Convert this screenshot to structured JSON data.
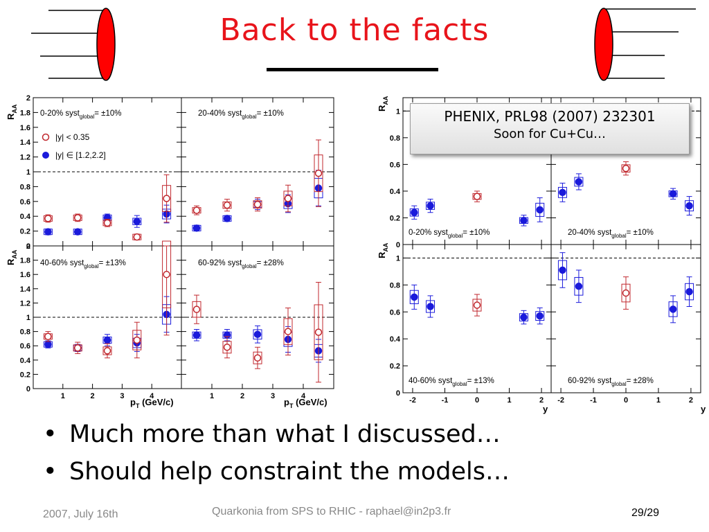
{
  "slide": {
    "title": "Back to the facts",
    "bullets": [
      "Much more than what I discussed…",
      "Should help constraint the models…"
    ],
    "bullet_glyph": "•",
    "footer_left": "2007, July 16th",
    "footer_center": "Quarkonia from SPS to RHIC - raphael@in2p3.fr",
    "footer_right": "29/29",
    "callout_line1": "PHENIX, PRL98 (2007) 232301",
    "callout_line2": "Soon for Cu+Cu…",
    "colors": {
      "title": "#e8141b",
      "red_series": "#c0272d",
      "blue_series": "#1a1adb",
      "ellipse": "#ff0000"
    },
    "icons": [
      "beam-ellipse-icon"
    ]
  },
  "chart_data": [
    {
      "type": "scatter",
      "ylabel": "R_AA",
      "xlabel": "p_T (GeV/c)",
      "xlim": [
        0,
        5
      ],
      "ylim": [
        0,
        2
      ],
      "y_ticks": [
        0,
        0.2,
        0.4,
        0.6,
        0.8,
        1,
        1.2,
        1.4,
        1.6,
        1.8,
        2
      ],
      "x_ticks": [
        1,
        2,
        3,
        4
      ],
      "reference_line": 1,
      "legend": [
        "|y| < 0.35",
        "|y| ∈ [1.2,2.2]"
      ],
      "panels": [
        {
          "label_prefix": "0-20% syst",
          "label_sub": "global",
          "label_suffix": "= ±10%",
          "red": [
            [
              0.5,
              0.37,
              0.05
            ],
            [
              1.5,
              0.38,
              0.05
            ],
            [
              2.5,
              0.31,
              0.05
            ],
            [
              3.5,
              0.12,
              0.04
            ],
            [
              4.5,
              0.64,
              0.32
            ]
          ],
          "blue": [
            [
              0.5,
              0.19,
              0.04
            ],
            [
              1.5,
              0.19,
              0.03
            ],
            [
              2.5,
              0.38,
              0.05
            ],
            [
              3.5,
              0.33,
              0.08
            ],
            [
              4.5,
              0.43,
              0.12
            ]
          ]
        },
        {
          "label_prefix": "20-40% syst",
          "label_sub": "global",
          "label_suffix": "= ±10%",
          "red": [
            [
              0.5,
              0.48,
              0.06
            ],
            [
              1.5,
              0.55,
              0.08
            ],
            [
              2.5,
              0.56,
              0.09
            ],
            [
              3.5,
              0.64,
              0.18
            ],
            [
              4.5,
              0.98,
              0.45
            ]
          ],
          "blue": [
            [
              0.5,
              0.24,
              0.04
            ],
            [
              1.5,
              0.37,
              0.04
            ],
            [
              2.5,
              0.56,
              0.07
            ],
            [
              3.5,
              0.57,
              0.12
            ],
            [
              4.5,
              0.78,
              0.24
            ]
          ]
        },
        {
          "label_prefix": "40-60% syst",
          "label_sub": "global",
          "label_suffix": "= ±13%",
          "red": [
            [
              0.5,
              0.73,
              0.07
            ],
            [
              1.5,
              0.57,
              0.08
            ],
            [
              2.5,
              0.53,
              0.1
            ],
            [
              3.5,
              0.68,
              0.25
            ],
            [
              4.5,
              1.6,
              0.85
            ]
          ],
          "blue": [
            [
              0.5,
              0.62,
              0.05
            ],
            [
              1.5,
              0.57,
              0.05
            ],
            [
              2.5,
              0.68,
              0.08
            ],
            [
              3.5,
              0.64,
              0.12
            ],
            [
              4.5,
              1.04,
              0.25
            ]
          ]
        },
        {
          "label_prefix": "60-92% syst",
          "label_sub": "global",
          "label_suffix": "= ±28%",
          "red": [
            [
              0.5,
              1.11,
              0.2
            ],
            [
              1.5,
              0.58,
              0.15
            ],
            [
              2.5,
              0.43,
              0.15
            ],
            [
              3.5,
              0.8,
              0.33
            ],
            [
              4.5,
              0.79,
              0.7
            ]
          ],
          "blue": [
            [
              0.5,
              0.75,
              0.08
            ],
            [
              1.5,
              0.75,
              0.08
            ],
            [
              2.5,
              0.76,
              0.12
            ],
            [
              3.5,
              0.69,
              0.18
            ],
            [
              4.5,
              0.53,
              0.16
            ]
          ]
        }
      ]
    },
    {
      "type": "scatter",
      "ylabel": "R_AA",
      "xlabel": "y",
      "xlim": [
        -2.3,
        2.3
      ],
      "ylim": [
        0,
        1.1
      ],
      "y_ticks": [
        0,
        0.2,
        0.4,
        0.6,
        0.8,
        1
      ],
      "x_ticks": [
        -2,
        -1,
        0,
        1,
        2
      ],
      "reference_line": 1,
      "panels": [
        {
          "label_prefix": "0-20%  syst",
          "label_sub": "global",
          "label_suffix": "= ±10%",
          "red": [
            [
              0,
              0.36,
              0.04
            ]
          ],
          "blue": [
            [
              -1.95,
              0.24,
              0.05
            ],
            [
              -1.45,
              0.29,
              0.05
            ],
            [
              1.45,
              0.18,
              0.04
            ],
            [
              1.95,
              0.26,
              0.09
            ]
          ]
        },
        {
          "label_prefix": "20-40%  syst",
          "label_sub": "global",
          "label_suffix": "= ±10%",
          "red": [
            [
              0,
              0.57,
              0.05
            ]
          ],
          "blue": [
            [
              -1.95,
              0.39,
              0.07
            ],
            [
              -1.45,
              0.47,
              0.06
            ],
            [
              1.45,
              0.38,
              0.04
            ],
            [
              1.95,
              0.29,
              0.07
            ]
          ]
        },
        {
          "label_prefix": "40-60%  syst",
          "label_sub": "global",
          "label_suffix": "= ±13%",
          "red": [
            [
              0,
              0.65,
              0.08
            ]
          ],
          "blue": [
            [
              -1.95,
              0.71,
              0.09
            ],
            [
              -1.45,
              0.64,
              0.08
            ],
            [
              1.45,
              0.56,
              0.05
            ],
            [
              1.95,
              0.57,
              0.06
            ]
          ]
        },
        {
          "label_prefix": "60-92%  syst",
          "label_sub": "global",
          "label_suffix": "= ±28%",
          "red": [
            [
              0,
              0.74,
              0.12
            ]
          ],
          "blue": [
            [
              -1.95,
              0.91,
              0.13
            ],
            [
              -1.45,
              0.79,
              0.12
            ],
            [
              1.45,
              0.62,
              0.1
            ],
            [
              1.95,
              0.75,
              0.11
            ]
          ]
        }
      ]
    }
  ]
}
